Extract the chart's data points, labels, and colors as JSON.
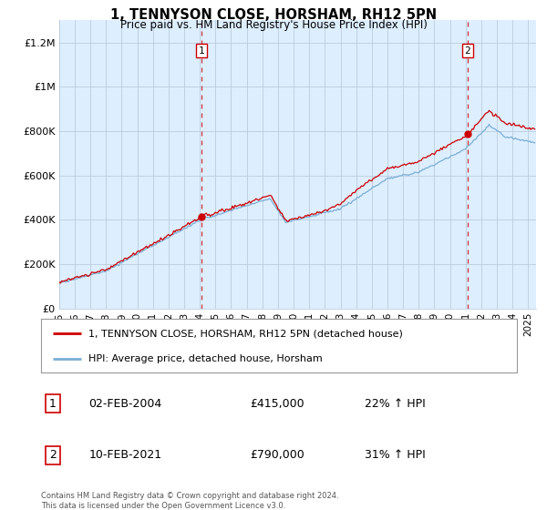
{
  "title": "1, TENNYSON CLOSE, HORSHAM, RH12 5PN",
  "subtitle": "Price paid vs. HM Land Registry's House Price Index (HPI)",
  "ylabel_ticks": [
    "£0",
    "£200K",
    "£400K",
    "£600K",
    "£800K",
    "£1M",
    "£1.2M"
  ],
  "ytick_values": [
    0,
    200000,
    400000,
    600000,
    800000,
    1000000,
    1200000
  ],
  "ylim": [
    0,
    1300000
  ],
  "xlim_start": 1995.0,
  "xlim_end": 2025.5,
  "purchase1_x": 2004.09,
  "purchase1_y": 415000,
  "purchase2_x": 2021.12,
  "purchase2_y": 790000,
  "hpi_color": "#7aaed6",
  "price_color": "#cc0000",
  "dashed_color": "#cc0000",
  "chart_bg_color": "#ddeeff",
  "background_color": "#ffffff",
  "grid_color": "#bbccdd",
  "legend1": "1, TENNYSON CLOSE, HORSHAM, RH12 5PN (detached house)",
  "legend2": "HPI: Average price, detached house, Horsham",
  "annotation1_date": "02-FEB-2004",
  "annotation1_price": "£415,000",
  "annotation1_hpi": "22% ↑ HPI",
  "annotation2_date": "10-FEB-2021",
  "annotation2_price": "£790,000",
  "annotation2_hpi": "31% ↑ HPI",
  "footer": "Contains HM Land Registry data © Crown copyright and database right 2024.\nThis data is licensed under the Open Government Licence v3.0."
}
